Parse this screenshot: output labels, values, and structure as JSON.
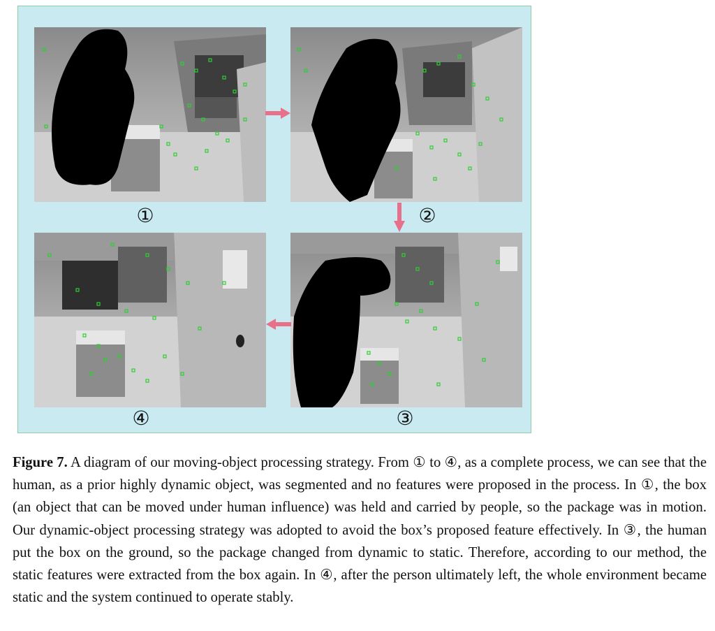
{
  "figure": {
    "step_labels": [
      "①",
      "②",
      "③",
      "④"
    ],
    "colors": {
      "panel_background": "#c8eaf0",
      "feature_marker": "#33cc33",
      "arrow": "#e8708a",
      "human_mask": "#000000"
    },
    "frames": [
      {
        "step": "①",
        "content": "human (black mask) carrying box, features on background"
      },
      {
        "step": "②",
        "content": "human moving box, features on background and box edges"
      },
      {
        "step": "③",
        "content": "human puts box on ground, features on box"
      },
      {
        "step": "④",
        "content": "human left, whole environment static with features"
      }
    ]
  },
  "caption": {
    "label": "Figure 7.",
    "text": " A diagram of our moving-object processing strategy. From ① to ④, as a complete process, we can see that the human, as a prior highly dynamic object, was segmented and no features were proposed in the process. In ①, the box (an object that can be moved under human influence) was held and carried by people, so the package was in motion. Our dynamic-object processing strategy was adopted to avoid the box’s proposed feature effectively. In ③, the human put the box on the ground, so the package changed from dynamic to static. Therefore, according to our method, the static features were extracted from the box again. In ④, after the person ultimately left, the whole environment became static and the system continued to operate stably."
  }
}
